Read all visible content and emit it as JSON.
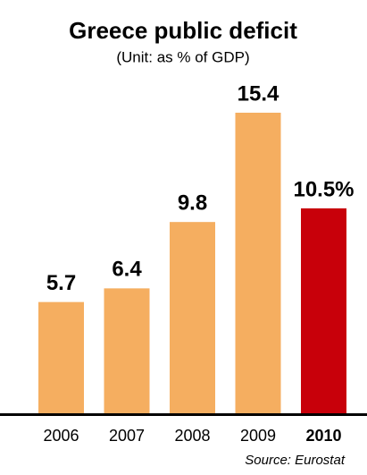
{
  "chart_data": {
    "type": "bar",
    "title": "Greece public deficit",
    "subtitle": "(Unit: as % of GDP)",
    "source": "Source: Eurostat",
    "categories": [
      "2006",
      "2007",
      "2008",
      "2009",
      "2010"
    ],
    "values": [
      5.7,
      6.4,
      9.8,
      15.4,
      10.5
    ],
    "value_labels": [
      "5.7",
      "6.4",
      "9.8",
      "15.4",
      "10.5%"
    ],
    "colors": [
      "#f5ae60",
      "#f5ae60",
      "#f5ae60",
      "#f5ae60",
      "#c8000a"
    ],
    "highlight": 4
  }
}
